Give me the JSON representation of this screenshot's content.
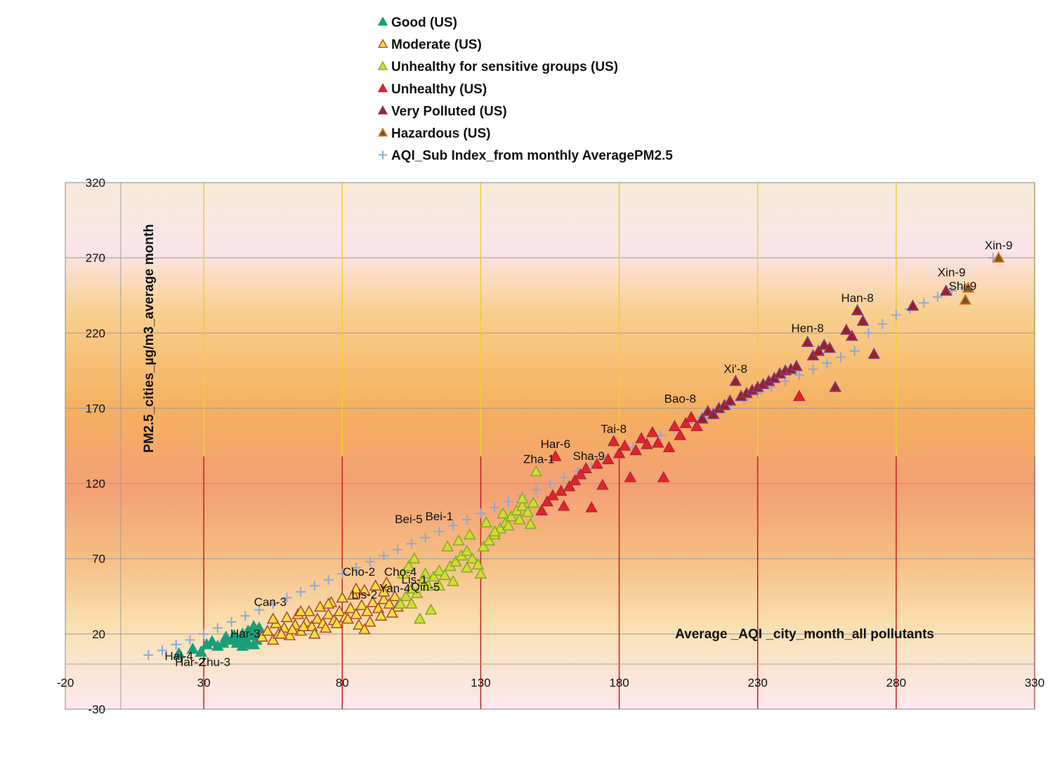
{
  "chart_data": {
    "type": "scatter",
    "title": "",
    "xlabel": "Average _AQI _city_month_all pollutants",
    "ylabel": "PM2.5_cities_µg/m3_average month",
    "xlim": [
      -20,
      330
    ],
    "ylim": [
      -30,
      320
    ],
    "x_ticks": [
      -20,
      30,
      80,
      130,
      180,
      230,
      280,
      330
    ],
    "y_ticks": [
      -30,
      20,
      70,
      120,
      170,
      220,
      270,
      320
    ],
    "grid": true,
    "legend_position": "top-center",
    "series": [
      {
        "name": "Good (US)",
        "marker": "triangle",
        "fill": "#1a9e7a",
        "stroke": "#1a9e7a",
        "points": [
          [
            21,
            7
          ],
          [
            26,
            10
          ],
          [
            29,
            8
          ],
          [
            31,
            13
          ],
          [
            33,
            15
          ],
          [
            35,
            12
          ],
          [
            37,
            14
          ],
          [
            38,
            18
          ],
          [
            40,
            16
          ],
          [
            41,
            19
          ],
          [
            42,
            14
          ],
          [
            43,
            16
          ],
          [
            44,
            20
          ],
          [
            45,
            17
          ],
          [
            46,
            22
          ],
          [
            47,
            19
          ],
          [
            48,
            25
          ],
          [
            49,
            22
          ],
          [
            50,
            18
          ],
          [
            50,
            24
          ],
          [
            48,
            13
          ],
          [
            49,
            16
          ],
          [
            44,
            12
          ],
          [
            46,
            14
          ]
        ]
      },
      {
        "name": "Moderate (US)",
        "marker": "triangle",
        "fill": "#f5e23c",
        "stroke": "#b44a3a",
        "points": [
          [
            51,
            18
          ],
          [
            53,
            22
          ],
          [
            55,
            16
          ],
          [
            57,
            20
          ],
          [
            59,
            24
          ],
          [
            61,
            19
          ],
          [
            63,
            26
          ],
          [
            65,
            22
          ],
          [
            67,
            28
          ],
          [
            69,
            25
          ],
          [
            71,
            30
          ],
          [
            73,
            27
          ],
          [
            75,
            33
          ],
          [
            77,
            29
          ],
          [
            79,
            35
          ],
          [
            81,
            31
          ],
          [
            83,
            37
          ],
          [
            85,
            33
          ],
          [
            87,
            39
          ],
          [
            89,
            35
          ],
          [
            91,
            41
          ],
          [
            93,
            37
          ],
          [
            95,
            43
          ],
          [
            97,
            40
          ],
          [
            99,
            45
          ],
          [
            100,
            38
          ],
          [
            56,
            27
          ],
          [
            60,
            31
          ],
          [
            64,
            33
          ],
          [
            68,
            35
          ],
          [
            72,
            38
          ],
          [
            76,
            41
          ],
          [
            80,
            44
          ],
          [
            84,
            46
          ],
          [
            88,
            49
          ],
          [
            92,
            52
          ],
          [
            96,
            54
          ],
          [
            58,
            20
          ],
          [
            62,
            23
          ],
          [
            66,
            25
          ],
          [
            70,
            20
          ],
          [
            74,
            24
          ],
          [
            78,
            27
          ],
          [
            82,
            30
          ],
          [
            86,
            26
          ],
          [
            90,
            28
          ],
          [
            94,
            32
          ],
          [
            98,
            34
          ],
          [
            55,
            30
          ],
          [
            65,
            35
          ],
          [
            75,
            40
          ],
          [
            85,
            50
          ],
          [
            95,
            48
          ],
          [
            88,
            23
          ]
        ]
      },
      {
        "name": "Unhealthy for sensitive groups (US)",
        "marker": "triangle",
        "fill": "#d4dd2e",
        "stroke": "#8aaa2e",
        "points": [
          [
            101,
            40
          ],
          [
            103,
            45
          ],
          [
            105,
            50
          ],
          [
            107,
            47
          ],
          [
            109,
            55
          ],
          [
            111,
            52
          ],
          [
            113,
            58
          ],
          [
            115,
            62
          ],
          [
            117,
            59
          ],
          [
            119,
            65
          ],
          [
            121,
            68
          ],
          [
            123,
            72
          ],
          [
            125,
            75
          ],
          [
            127,
            70
          ],
          [
            129,
            66
          ],
          [
            131,
            78
          ],
          [
            133,
            82
          ],
          [
            135,
            86
          ],
          [
            137,
            90
          ],
          [
            139,
            94
          ],
          [
            141,
            98
          ],
          [
            143,
            102
          ],
          [
            145,
            105
          ],
          [
            147,
            101
          ],
          [
            149,
            107
          ],
          [
            150,
            128
          ],
          [
            148,
            93
          ],
          [
            112,
            36
          ],
          [
            108,
            30
          ],
          [
            105,
            40
          ],
          [
            110,
            60
          ],
          [
            115,
            52
          ],
          [
            120,
            55
          ],
          [
            125,
            64
          ],
          [
            130,
            60
          ],
          [
            135,
            88
          ],
          [
            140,
            92
          ],
          [
            145,
            110
          ],
          [
            102,
            60
          ],
          [
            104,
            65
          ],
          [
            106,
            70
          ],
          [
            118,
            78
          ],
          [
            122,
            82
          ],
          [
            126,
            86
          ],
          [
            132,
            94
          ],
          [
            138,
            100
          ],
          [
            144,
            96
          ]
        ]
      },
      {
        "name": "Unhealthy (US)",
        "marker": "triangle",
        "fill": "#e8202a",
        "stroke": "#b02a3a",
        "points": [
          [
            152,
            102
          ],
          [
            154,
            108
          ],
          [
            156,
            112
          ],
          [
            157,
            138
          ],
          [
            159,
            115
          ],
          [
            160,
            105
          ],
          [
            162,
            118
          ],
          [
            164,
            122
          ],
          [
            166,
            126
          ],
          [
            168,
            130
          ],
          [
            170,
            104
          ],
          [
            172,
            133
          ],
          [
            174,
            119
          ],
          [
            176,
            136
          ],
          [
            178,
            148
          ],
          [
            180,
            140
          ],
          [
            182,
            145
          ],
          [
            184,
            124
          ],
          [
            186,
            142
          ],
          [
            188,
            150
          ],
          [
            190,
            146
          ],
          [
            192,
            154
          ],
          [
            194,
            147
          ],
          [
            196,
            124
          ],
          [
            198,
            144
          ],
          [
            200,
            158
          ],
          [
            202,
            152
          ],
          [
            204,
            160
          ],
          [
            206,
            164
          ],
          [
            208,
            158
          ],
          [
            245,
            178
          ]
        ]
      },
      {
        "name": "Very Polluted (US)",
        "marker": "triangle",
        "fill": "#a01e1e",
        "stroke": "#7a3d8a",
        "points": [
          [
            210,
            163
          ],
          [
            212,
            168
          ],
          [
            214,
            166
          ],
          [
            216,
            170
          ],
          [
            218,
            172
          ],
          [
            220,
            175
          ],
          [
            222,
            188
          ],
          [
            224,
            178
          ],
          [
            226,
            180
          ],
          [
            228,
            182
          ],
          [
            230,
            184
          ],
          [
            232,
            186
          ],
          [
            234,
            188
          ],
          [
            236,
            190
          ],
          [
            238,
            193
          ],
          [
            240,
            195
          ],
          [
            242,
            196
          ],
          [
            244,
            198
          ],
          [
            248,
            214
          ],
          [
            250,
            205
          ],
          [
            252,
            208
          ],
          [
            254,
            212
          ],
          [
            256,
            210
          ],
          [
            258,
            184
          ],
          [
            262,
            222
          ],
          [
            264,
            218
          ],
          [
            266,
            235
          ],
          [
            268,
            228
          ],
          [
            272,
            206
          ],
          [
            286,
            238
          ],
          [
            298,
            248
          ]
        ]
      },
      {
        "name": "Hazardous (US)",
        "marker": "triangle",
        "fill": "#7a5a1a",
        "stroke": "#e07a2a",
        "points": [
          [
            305,
            242
          ],
          [
            306,
            250
          ],
          [
            317,
            270
          ]
        ]
      },
      {
        "name": "AQI_Sub Index_from monthly AveragePM2.5",
        "marker": "plus",
        "fill": "#8fa8d8",
        "stroke": "#8fa8d8",
        "points": [
          [
            10,
            6
          ],
          [
            15,
            9
          ],
          [
            20,
            13
          ],
          [
            25,
            16
          ],
          [
            30,
            20
          ],
          [
            35,
            24
          ],
          [
            40,
            28
          ],
          [
            45,
            32
          ],
          [
            50,
            36
          ],
          [
            55,
            40
          ],
          [
            60,
            44
          ],
          [
            65,
            48
          ],
          [
            70,
            52
          ],
          [
            75,
            56
          ],
          [
            80,
            60
          ],
          [
            85,
            64
          ],
          [
            90,
            68
          ],
          [
            95,
            72
          ],
          [
            100,
            76
          ],
          [
            105,
            80
          ],
          [
            110,
            84
          ],
          [
            115,
            88
          ],
          [
            120,
            92
          ],
          [
            125,
            96
          ],
          [
            130,
            100
          ],
          [
            135,
            104
          ],
          [
            140,
            108
          ],
          [
            145,
            112
          ],
          [
            150,
            116
          ],
          [
            155,
            120
          ],
          [
            160,
            124
          ],
          [
            165,
            128
          ],
          [
            170,
            132
          ],
          [
            175,
            136
          ],
          [
            180,
            140
          ],
          [
            185,
            144
          ],
          [
            190,
            148
          ],
          [
            195,
            152
          ],
          [
            200,
            156
          ],
          [
            205,
            160
          ],
          [
            210,
            164
          ],
          [
            215,
            168
          ],
          [
            220,
            172
          ],
          [
            225,
            176
          ],
          [
            230,
            180
          ],
          [
            235,
            184
          ],
          [
            240,
            188
          ],
          [
            245,
            192
          ],
          [
            250,
            196
          ],
          [
            255,
            200
          ],
          [
            260,
            204
          ],
          [
            265,
            208
          ],
          [
            270,
            220
          ],
          [
            275,
            226
          ],
          [
            280,
            232
          ],
          [
            285,
            236
          ],
          [
            290,
            240
          ],
          [
            295,
            244
          ],
          [
            300,
            248
          ],
          [
            305,
            250
          ],
          [
            315,
            270
          ]
        ]
      }
    ],
    "annotations": [
      {
        "text": "Xin-9",
        "x": 317,
        "y": 270
      },
      {
        "text": "Xin-9",
        "x": 300,
        "y": 252
      },
      {
        "text": "Shi-9",
        "x": 304,
        "y": 243
      },
      {
        "text": "Han-8",
        "x": 266,
        "y": 235
      },
      {
        "text": "Hen-8",
        "x": 248,
        "y": 215
      },
      {
        "text": "Xi'-8",
        "x": 222,
        "y": 188
      },
      {
        "text": "Bao-8",
        "x": 202,
        "y": 168
      },
      {
        "text": "Tai-8",
        "x": 178,
        "y": 148
      },
      {
        "text": "Har-6",
        "x": 157,
        "y": 138
      },
      {
        "text": "Sha-9",
        "x": 169,
        "y": 130
      },
      {
        "text": "Zha-1",
        "x": 151,
        "y": 128
      },
      {
        "text": "Bei-5",
        "x": 104,
        "y": 88
      },
      {
        "text": "Bei-1",
        "x": 115,
        "y": 90
      },
      {
        "text": "Cho-2",
        "x": 86,
        "y": 53
      },
      {
        "text": "Cho-4",
        "x": 101,
        "y": 53
      },
      {
        "text": "Lis-1",
        "x": 106,
        "y": 48
      },
      {
        "text": "Yan-4",
        "x": 99,
        "y": 42
      },
      {
        "text": "Qin-5",
        "x": 110,
        "y": 43
      },
      {
        "text": "Lis-2",
        "x": 88,
        "y": 38
      },
      {
        "text": "Can-3",
        "x": 54,
        "y": 33
      },
      {
        "text": "Har-3",
        "x": 45,
        "y": 12
      },
      {
        "text": "Haj-4",
        "x": 21,
        "y": -3
      },
      {
        "text": "Har-2",
        "x": 25,
        "y": -7
      },
      {
        "text": "Zhu-3",
        "x": 34,
        "y": -7
      }
    ]
  }
}
